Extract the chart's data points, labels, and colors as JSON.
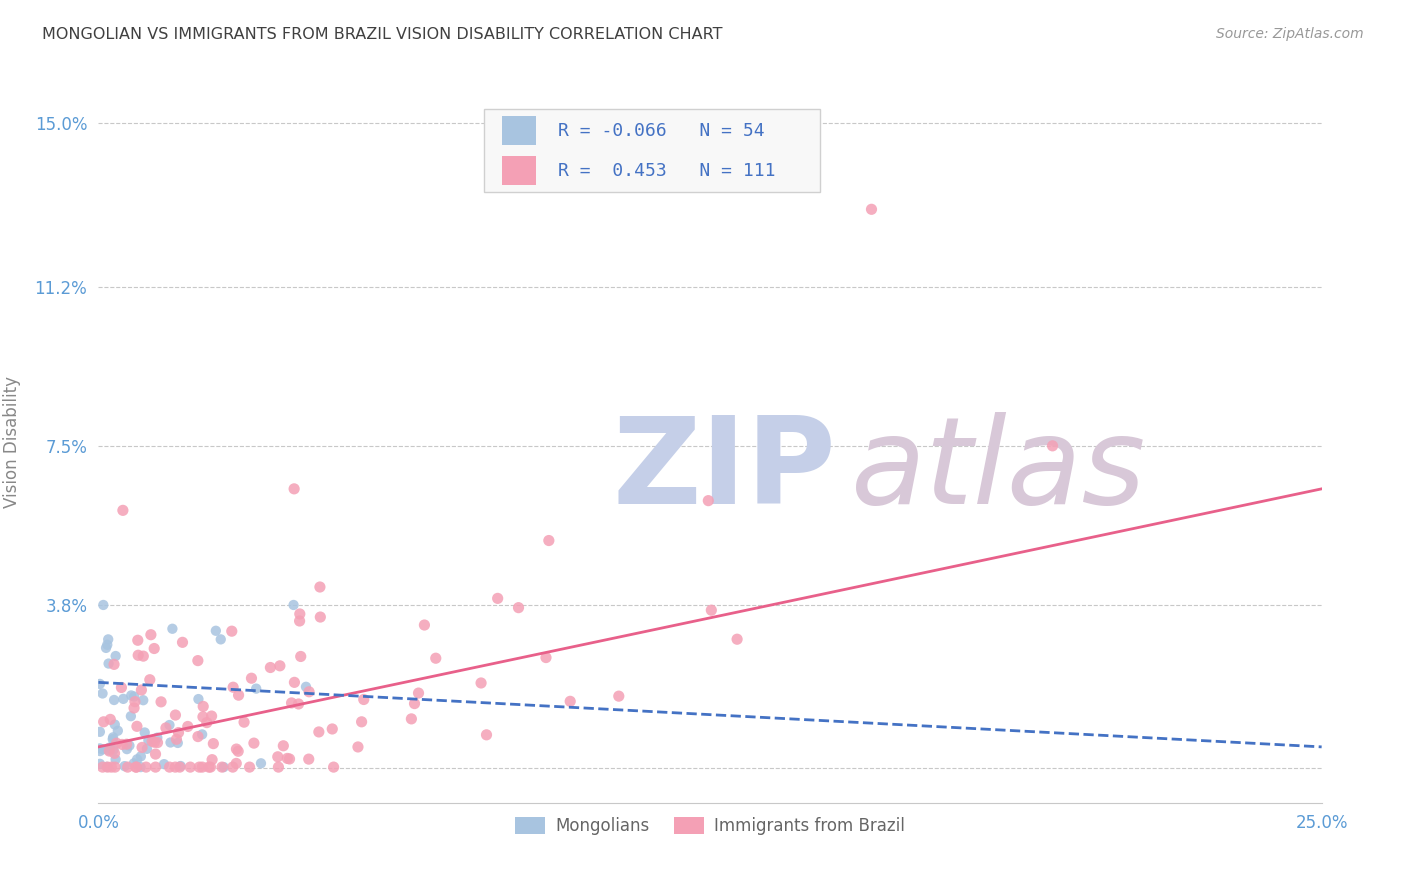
{
  "title": "MONGOLIAN VS IMMIGRANTS FROM BRAZIL VISION DISABILITY CORRELATION CHART",
  "source": "Source: ZipAtlas.com",
  "ylabel": "Vision Disability",
  "xlabel": "",
  "xlim": [
    0.0,
    0.25
  ],
  "ylim": [
    -0.008,
    0.16
  ],
  "yticks": [
    0.0,
    0.038,
    0.075,
    0.112,
    0.15
  ],
  "ytick_labels": [
    "",
    "3.8%",
    "7.5%",
    "11.2%",
    "15.0%"
  ],
  "xticks": [
    0.0,
    0.05,
    0.1,
    0.15,
    0.2,
    0.25
  ],
  "xtick_labels": [
    "0.0%",
    "",
    "",
    "",
    "",
    "25.0%"
  ],
  "mongolian_R": -0.066,
  "mongolian_N": 54,
  "brazil_R": 0.453,
  "brazil_N": 111,
  "mongolian_color": "#a8c4e0",
  "brazil_color": "#f4a0b5",
  "mongolian_line_color": "#4472c4",
  "brazil_line_color": "#e8608a",
  "grid_color": "#c8c8c8",
  "background_color": "#ffffff",
  "title_color": "#404040",
  "axis_label_color": "#5b9bd5",
  "watermark_zip_color": "#c5cfe8",
  "watermark_atlas_color": "#d8c8d8",
  "brazil_line_start_y": 0.005,
  "brazil_line_end_y": 0.065,
  "mongolian_line_start_y": 0.02,
  "mongolian_line_end_y": 0.005
}
